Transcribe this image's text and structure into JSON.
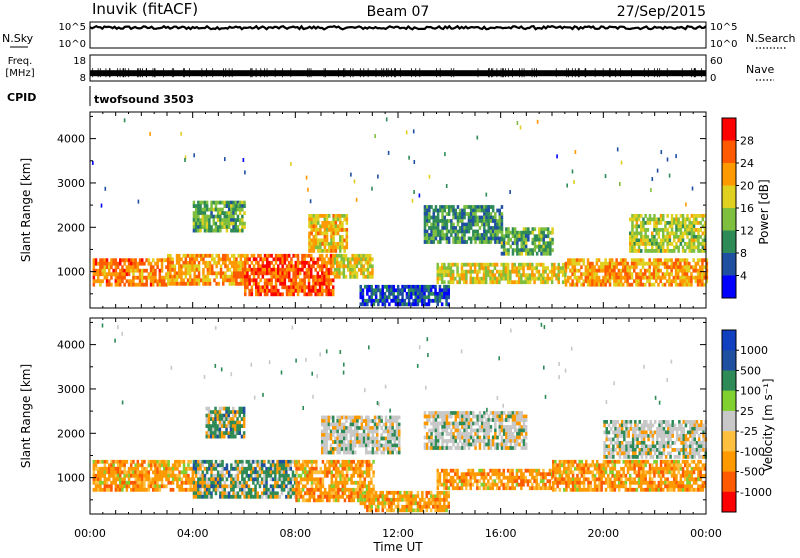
{
  "header": {
    "title": "Inuvik (fitACF)",
    "beam": "Beam 07",
    "date": "27/Sep/2015"
  },
  "top_panels": {
    "nsky": {
      "label": "N.Sky",
      "ticks": [
        "10^5",
        "10^0"
      ],
      "right_label": "N.Search",
      "right_ticks": [
        "10^5",
        "10^0"
      ],
      "level": 0.78
    },
    "freq": {
      "label_line1": "Freq.",
      "label_line2": "[MHz]",
      "ticks": [
        "18",
        "8"
      ],
      "right_label": "Nave",
      "right_ticks": [
        "60",
        "0"
      ],
      "level": 0.3
    },
    "cpid": {
      "label": "CPID",
      "value": "twofsound 3503"
    }
  },
  "x_axis": {
    "label": "Time UT",
    "ticks": [
      "00:00",
      "04:00",
      "08:00",
      "12:00",
      "16:00",
      "20:00",
      "00:00"
    ]
  },
  "colors": {
    "power_scale": [
      "#0000ff",
      "#1f4fa0",
      "#2e8b57",
      "#7fbf3f",
      "#e0d020",
      "#ff9900",
      "#ff5a00",
      "#ff0000"
    ],
    "velocity_scale": [
      "#ff0000",
      "#ff5a00",
      "#ff9900",
      "#ffc040",
      "#c8c8c8",
      "#80d030",
      "#2e8b57",
      "#1f4fa0",
      "#1040c0"
    ]
  },
  "chart_data": [
    {
      "type": "heatmap",
      "name": "Power",
      "ylabel": "Slant Range [km]",
      "xlabel": "",
      "x_range_hours": [
        0,
        24
      ],
      "ylim": [
        180,
        4600
      ],
      "y_ticks": [
        1000,
        2000,
        3000,
        4000
      ],
      "colorbar": {
        "label": "Power [dB]",
        "range": [
          0,
          32
        ],
        "ticks": [
          "4",
          "8",
          "12",
          "16",
          "20",
          "24",
          "28"
        ]
      },
      "echo_regions": [
        {
          "t0": 0.1,
          "t1": 3.0,
          "r0": 700,
          "r1": 1300,
          "level": 26
        },
        {
          "t0": 3.0,
          "t1": 6.0,
          "r0": 700,
          "r1": 1400,
          "level": 24
        },
        {
          "t0": 6.0,
          "t1": 9.5,
          "r0": 500,
          "r1": 1400,
          "level": 28
        },
        {
          "t0": 4.0,
          "t1": 6.0,
          "r0": 1900,
          "r1": 2600,
          "level": 14
        },
        {
          "t0": 8.5,
          "t1": 10.0,
          "r0": 1500,
          "r1": 2300,
          "level": 22
        },
        {
          "t0": 9.5,
          "t1": 11.0,
          "r0": 900,
          "r1": 1400,
          "level": 20
        },
        {
          "t0": 10.5,
          "t1": 14.0,
          "r0": 250,
          "r1": 700,
          "level": 8
        },
        {
          "t0": 13.5,
          "t1": 18.5,
          "r0": 800,
          "r1": 1200,
          "level": 20
        },
        {
          "t0": 13.0,
          "t1": 16.0,
          "r0": 1700,
          "r1": 2500,
          "level": 12
        },
        {
          "t0": 16.0,
          "t1": 18.0,
          "r0": 1400,
          "r1": 2000,
          "level": 14
        },
        {
          "t0": 18.5,
          "t1": 24.0,
          "r0": 700,
          "r1": 1300,
          "level": 24
        },
        {
          "t0": 21.0,
          "t1": 24.0,
          "r0": 1500,
          "r1": 2300,
          "level": 18
        }
      ]
    },
    {
      "type": "heatmap",
      "name": "Velocity",
      "ylabel": "Slant Range [km]",
      "xlabel": "Time UT",
      "x_range_hours": [
        0,
        24
      ],
      "ylim": [
        180,
        4600
      ],
      "y_ticks": [
        1000,
        2000,
        3000,
        4000
      ],
      "colorbar": {
        "label": "Velocity [m s⁻¹]",
        "ticks": [
          "1000",
          "500",
          "100",
          "25",
          "-25",
          "-100",
          "-500",
          "-1000"
        ]
      },
      "echo_regions": [
        {
          "t0": 0.1,
          "t1": 4.0,
          "r0": 700,
          "r1": 1400,
          "level": -100
        },
        {
          "t0": 4.0,
          "t1": 8.0,
          "r0": 600,
          "r1": 1400,
          "level": 100
        },
        {
          "t0": 8.0,
          "t1": 11.0,
          "r0": 500,
          "r1": 1400,
          "level": -100
        },
        {
          "t0": 9.0,
          "t1": 12.0,
          "r0": 1600,
          "r1": 2400,
          "level": 0
        },
        {
          "t0": 4.5,
          "t1": 6.0,
          "r0": 1900,
          "r1": 2600,
          "level": 100
        },
        {
          "t0": 10.5,
          "t1": 14.0,
          "r0": 250,
          "r1": 700,
          "level": -100
        },
        {
          "t0": 13.5,
          "t1": 18.0,
          "r0": 800,
          "r1": 1200,
          "level": -100
        },
        {
          "t0": 13.0,
          "t1": 17.0,
          "r0": 1700,
          "r1": 2500,
          "level": 0
        },
        {
          "t0": 18.0,
          "t1": 24.0,
          "r0": 700,
          "r1": 1400,
          "level": -100
        },
        {
          "t0": 20.0,
          "t1": 24.0,
          "r0": 1500,
          "r1": 2300,
          "level": 0
        }
      ]
    }
  ]
}
